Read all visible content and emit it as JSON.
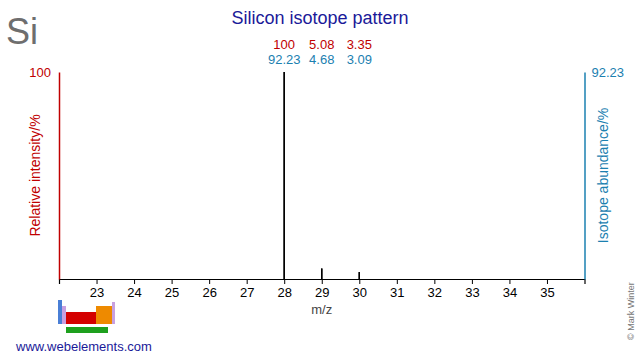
{
  "chart_data": {
    "type": "bar",
    "title": "Silicon isotope pattern",
    "symbol": "Si",
    "x": [
      28,
      29,
      30
    ],
    "x_label": "m/z",
    "y_label": "Relative intensity/%",
    "y2_label": "Isotope abundance/%",
    "xlim": [
      22,
      36
    ],
    "xticks": [
      23,
      24,
      25,
      26,
      27,
      28,
      29,
      30,
      31,
      32,
      33,
      34,
      35
    ],
    "ylim": [
      0,
      100
    ],
    "yticks": [
      100
    ],
    "y2lim": [
      0,
      92.23
    ],
    "y2ticks": [
      92.23
    ],
    "series": [
      {
        "values": [
          100,
          5.08,
          3.35
        ],
        "color": "#000000"
      },
      {
        "values": [
          92.23,
          4.68,
          3.09
        ],
        "color": "#000000",
        "axis": "y2"
      }
    ],
    "data_labels": true,
    "source": "www.webelements.com",
    "credit": "© Mark Winter"
  }
}
